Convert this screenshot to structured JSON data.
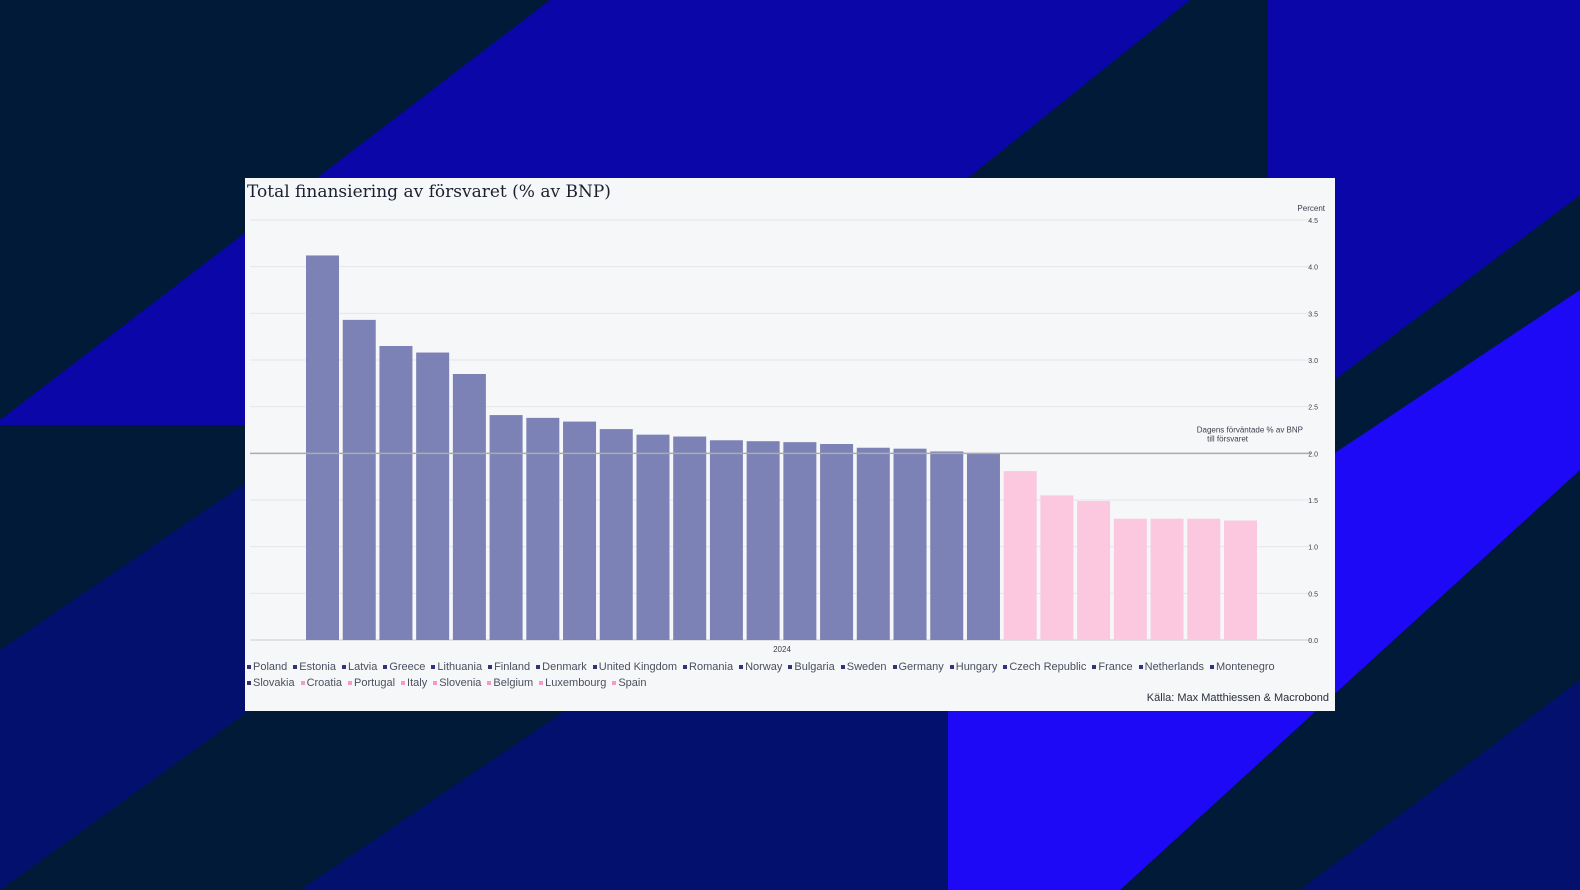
{
  "colors": {
    "background": "#001a38",
    "stripe_blue": "#0a06a8",
    "stripe_navy": "#03106e",
    "stripe_bright": "#1d09f5",
    "card": "#f6f7f8",
    "bar_above": "#7c82b5",
    "bar_below": "#fbc8e0",
    "marker_above": "#34327a",
    "marker_below": "#f59ac4",
    "reference_line": "#a9abb0"
  },
  "chart_data": {
    "type": "bar",
    "title": "Total finansiering av försvaret (% av BNP)",
    "ylabel": "Percent",
    "xlabel": "2024",
    "ylim": [
      0,
      4.5
    ],
    "yticks": [
      "0.0",
      "0.5",
      "1.0",
      "1.5",
      "2.0",
      "2.5",
      "3.0",
      "3.5",
      "4.0",
      "4.5"
    ],
    "grid": true,
    "reference_line": {
      "value": 2.0,
      "label_line1": "Dagens förväntade % av BNP",
      "label_line2": "till försvaret"
    },
    "categories": [
      "Poland",
      "Estonia",
      "Latvia",
      "Greece",
      "Lithuania",
      "Finland",
      "Denmark",
      "United Kingdom",
      "Romania",
      "Norway",
      "Bulgaria",
      "Sweden",
      "Germany",
      "Hungary",
      "Czech Republic",
      "France",
      "Netherlands",
      "Montenegro",
      "Slovakia",
      "Croatia",
      "Portugal",
      "Italy",
      "Slovenia",
      "Belgium",
      "Luxembourg",
      "Spain"
    ],
    "values": [
      4.12,
      3.43,
      3.15,
      3.08,
      2.85,
      2.41,
      2.38,
      2.34,
      2.26,
      2.2,
      2.18,
      2.14,
      2.13,
      2.12,
      2.1,
      2.06,
      2.05,
      2.02,
      2.0,
      1.81,
      1.55,
      1.49,
      1.3,
      1.3,
      1.3,
      1.28
    ],
    "legend_placement": "bottom",
    "source": "Källa: Max Matthiessen & Macrobond"
  }
}
